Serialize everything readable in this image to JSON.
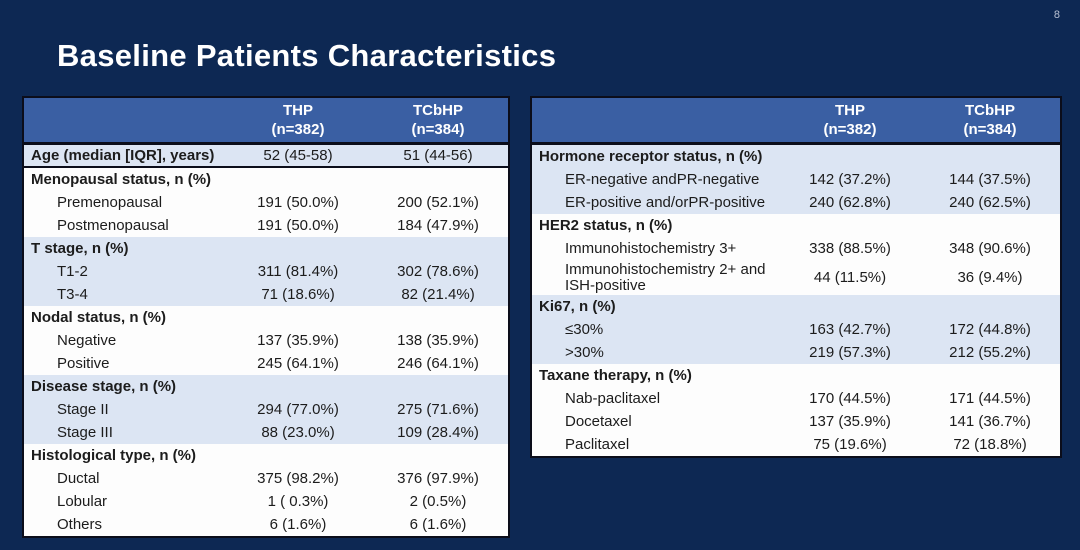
{
  "slide": {
    "title": "Baseline Patients Characteristics",
    "page_number": "8",
    "colors": {
      "background": "#0d2853",
      "table_header_bg": "#3a5fa3",
      "band_light": "#dce5f3",
      "band_white": "#fdfdfd",
      "table_border": "#0b0d1a",
      "title_text": "#ffffff",
      "body_text": "#1c1c1c",
      "page_number_text": "#b7c0d2"
    }
  },
  "tables": [
    {
      "id": "left",
      "columns": [
        {
          "name": "THP",
          "n": "(n=382)"
        },
        {
          "name": "TCbHP",
          "n": "(n=384)"
        }
      ],
      "sections": [
        {
          "band": "light",
          "divider_after": true,
          "rows": [
            {
              "label": "Age (median [IQR], years)",
              "bold": true,
              "thp": "52 (45-58)",
              "tcbhp": "51 (44-56)"
            }
          ]
        },
        {
          "band": "white",
          "rows": [
            {
              "label": "Menopausal status, n (%)",
              "bold": true
            },
            {
              "label": "Premenopausal",
              "indent": true,
              "thp": "191 (50.0%)",
              "tcbhp": "200 (52.1%)"
            },
            {
              "label": "Postmenopausal",
              "indent": true,
              "thp": "191 (50.0%)",
              "tcbhp": "184 (47.9%)"
            }
          ]
        },
        {
          "band": "light",
          "rows": [
            {
              "label": "T stage, n (%)",
              "bold": true
            },
            {
              "label": "T1-2",
              "indent": true,
              "thp": "311 (81.4%)",
              "tcbhp": "302 (78.6%)"
            },
            {
              "label": "T3-4",
              "indent": true,
              "thp": "71 (18.6%)",
              "tcbhp": "82 (21.4%)"
            }
          ]
        },
        {
          "band": "white",
          "rows": [
            {
              "label": "Nodal status, n (%)",
              "bold": true
            },
            {
              "label": "Negative",
              "indent": true,
              "thp": "137 (35.9%)",
              "tcbhp": "138 (35.9%)"
            },
            {
              "label": "Positive",
              "indent": true,
              "thp": "245 (64.1%)",
              "tcbhp": "246 (64.1%)"
            }
          ]
        },
        {
          "band": "light",
          "rows": [
            {
              "label": "Disease stage, n (%)",
              "bold": true
            },
            {
              "label": "Stage II",
              "indent": true,
              "thp": "294 (77.0%)",
              "tcbhp": "275 (71.6%)"
            },
            {
              "label": "Stage III",
              "indent": true,
              "thp": "88 (23.0%)",
              "tcbhp": "109 (28.4%)"
            }
          ]
        },
        {
          "band": "white",
          "rows": [
            {
              "label": "Histological type, n (%)",
              "bold": true
            },
            {
              "label": "Ductal",
              "indent": true,
              "thp": "375 (98.2%)",
              "tcbhp": "376 (97.9%)"
            },
            {
              "label": "Lobular",
              "indent": true,
              "thp": "1 ( 0.3%)",
              "tcbhp": "2 (0.5%)"
            },
            {
              "label": "Others",
              "indent": true,
              "thp": "6 (1.6%)",
              "tcbhp": "6 (1.6%)"
            }
          ]
        }
      ]
    },
    {
      "id": "right",
      "columns": [
        {
          "name": "THP",
          "n": "(n=382)"
        },
        {
          "name": "TCbHP",
          "n": "(n=384)"
        }
      ],
      "sections": [
        {
          "band": "light",
          "rows": [
            {
              "label": "Hormone receptor status, n (%)",
              "bold": true
            },
            {
              "label": "ER-negative andPR-negative",
              "indent": true,
              "thp": "142 (37.2%)",
              "tcbhp": "144 (37.5%)"
            },
            {
              "label": "ER-positive and/orPR-positive",
              "indent": true,
              "thp": "240 (62.8%)",
              "tcbhp": "240 (62.5%)"
            }
          ]
        },
        {
          "band": "white",
          "rows": [
            {
              "label": "HER2 status, n (%)",
              "bold": true
            },
            {
              "label": "Immunohistochemistry 3+",
              "indent": true,
              "thp": "338 (88.5%)",
              "tcbhp": "348 (90.6%)"
            },
            {
              "label": "Immunohistochemistry 2+ and ISH-positive",
              "indent": true,
              "tall": true,
              "thp": "44 (11.5%)",
              "tcbhp": "36 (9.4%)"
            }
          ]
        },
        {
          "band": "light",
          "rows": [
            {
              "label": "Ki67, n (%)",
              "bold": true
            },
            {
              "label": "≤30%",
              "indent": true,
              "thp": "163 (42.7%)",
              "tcbhp": "172 (44.8%)"
            },
            {
              "label": ">30%",
              "indent": true,
              "thp": "219 (57.3%)",
              "tcbhp": "212 (55.2%)"
            }
          ]
        },
        {
          "band": "white",
          "rows": [
            {
              "label": "Taxane therapy, n (%)",
              "bold": true
            },
            {
              "label": "Nab-paclitaxel",
              "indent": true,
              "thp": "170 (44.5%)",
              "tcbhp": "171 (44.5%)"
            },
            {
              "label": "Docetaxel",
              "indent": true,
              "thp": "137 (35.9%)",
              "tcbhp": "141 (36.7%)"
            },
            {
              "label": "Paclitaxel",
              "indent": true,
              "thp": "75 (19.6%)",
              "tcbhp": "72 (18.8%)"
            }
          ]
        }
      ]
    }
  ]
}
